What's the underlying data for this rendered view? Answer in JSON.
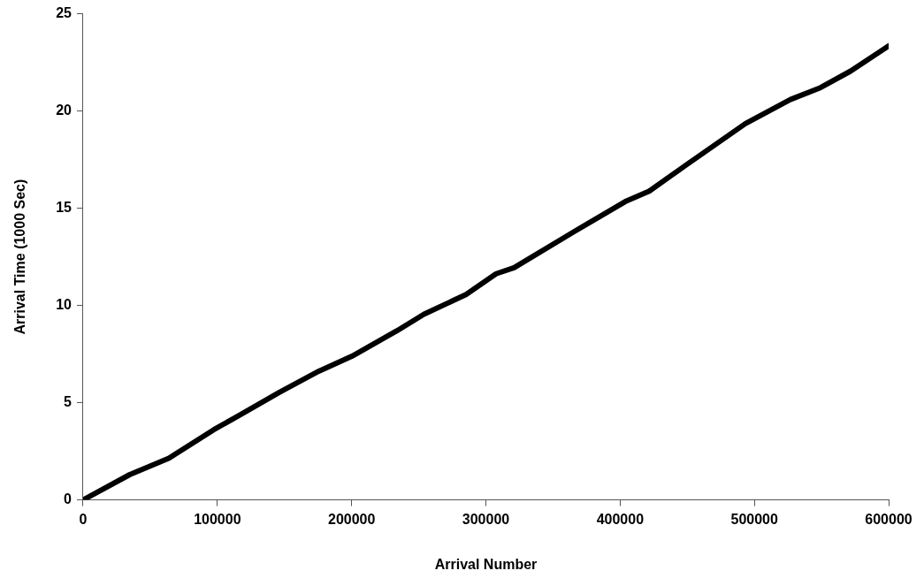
{
  "chart_data": {
    "type": "line",
    "xlabel": "Arrival Number",
    "ylabel": "Arrival Time (1000 Sec)",
    "xlim": [
      0,
      600000
    ],
    "xticks": [
      0,
      100000,
      200000,
      300000,
      400000,
      500000,
      600000
    ],
    "ylim": [
      0,
      25
    ],
    "yticks": [
      0,
      5,
      10,
      15,
      20,
      25
    ],
    "grid": false,
    "legend": false,
    "marker": "none",
    "line_style": "solid",
    "series": [
      {
        "color": "#000000",
        "x": [
          0,
          34700,
          63800,
          97300,
          115200,
          146500,
          175600,
          200200,
          233800,
          253900,
          285200,
          307600,
          321000,
          365800,
          403800,
          421700,
          448500,
          470900,
          493300,
          526800,
          549200,
          571600,
          600000
        ],
        "values": [
          0,
          1.3,
          2.14,
          3.61,
          4.31,
          5.54,
          6.62,
          7.39,
          8.7,
          9.55,
          10.56,
          11.63,
          11.94,
          13.8,
          15.34,
          15.88,
          17.19,
          18.27,
          19.35,
          20.59,
          21.2,
          22.05,
          23.35
        ]
      }
    ]
  }
}
